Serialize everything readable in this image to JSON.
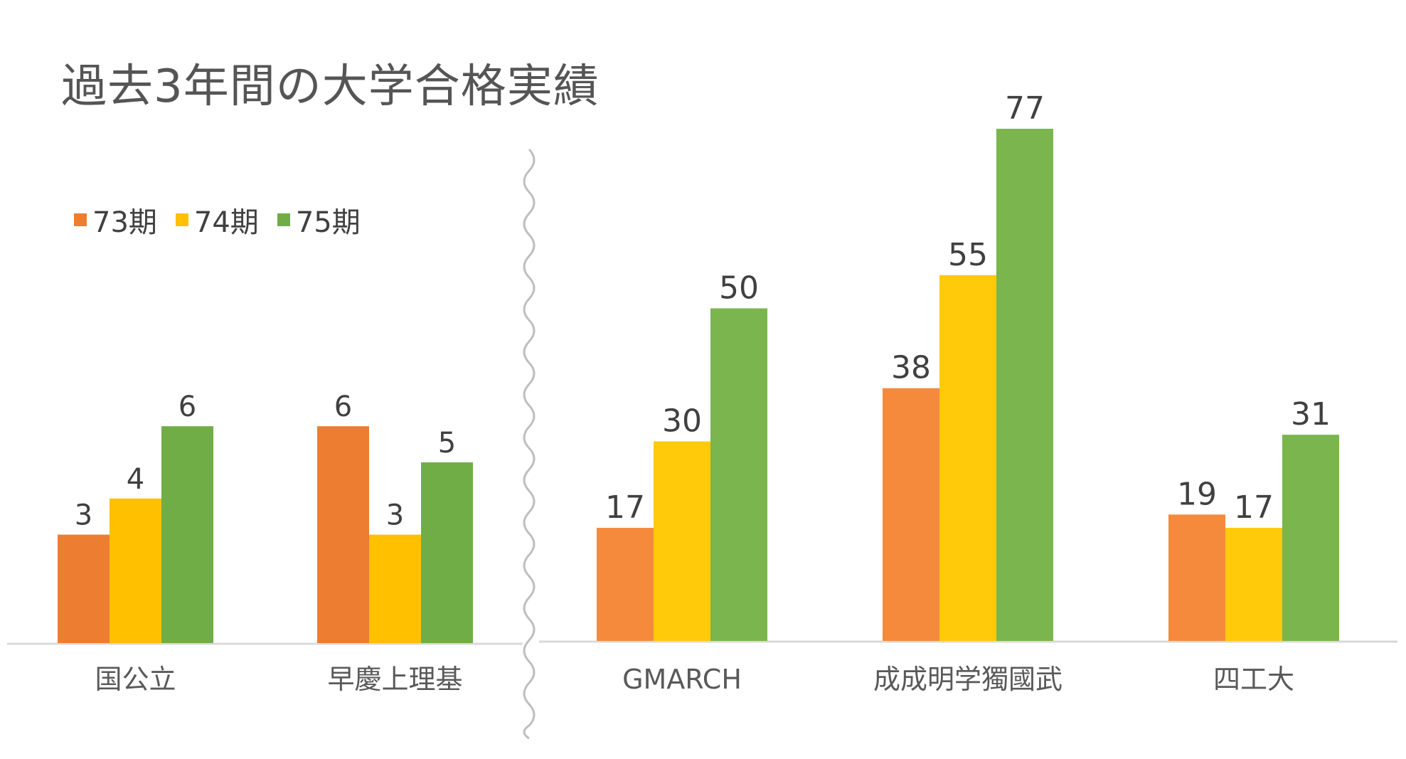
{
  "chart_data": [
    {
      "type": "bar",
      "title": "過去3年間の大学合格実績",
      "categories": [
        "国公立",
        "早慶上理基"
      ],
      "series": [
        {
          "name": "73期",
          "values": [
            3,
            6
          ],
          "color": "#ED7D31"
        },
        {
          "name": "74期",
          "values": [
            4,
            3
          ],
          "color": "#FFC000"
        },
        {
          "name": "75期",
          "values": [
            6,
            5
          ],
          "color": "#70AD47"
        }
      ],
      "ylim": [
        0,
        12
      ],
      "grid": false,
      "legend": "top-left"
    },
    {
      "type": "bar",
      "categories": [
        "GMARCH",
        "成成明学獨國武",
        "四工大"
      ],
      "series": [
        {
          "name": "73期",
          "values": [
            17,
            38,
            19
          ],
          "color": "#F58A3C"
        },
        {
          "name": "74期",
          "values": [
            30,
            55,
            17
          ],
          "color": "#FFCA0A"
        },
        {
          "name": "75期",
          "values": [
            50,
            77,
            31
          ],
          "color": "#7AB54E"
        }
      ],
      "ylim": [
        0,
        85
      ],
      "grid": false
    }
  ]
}
